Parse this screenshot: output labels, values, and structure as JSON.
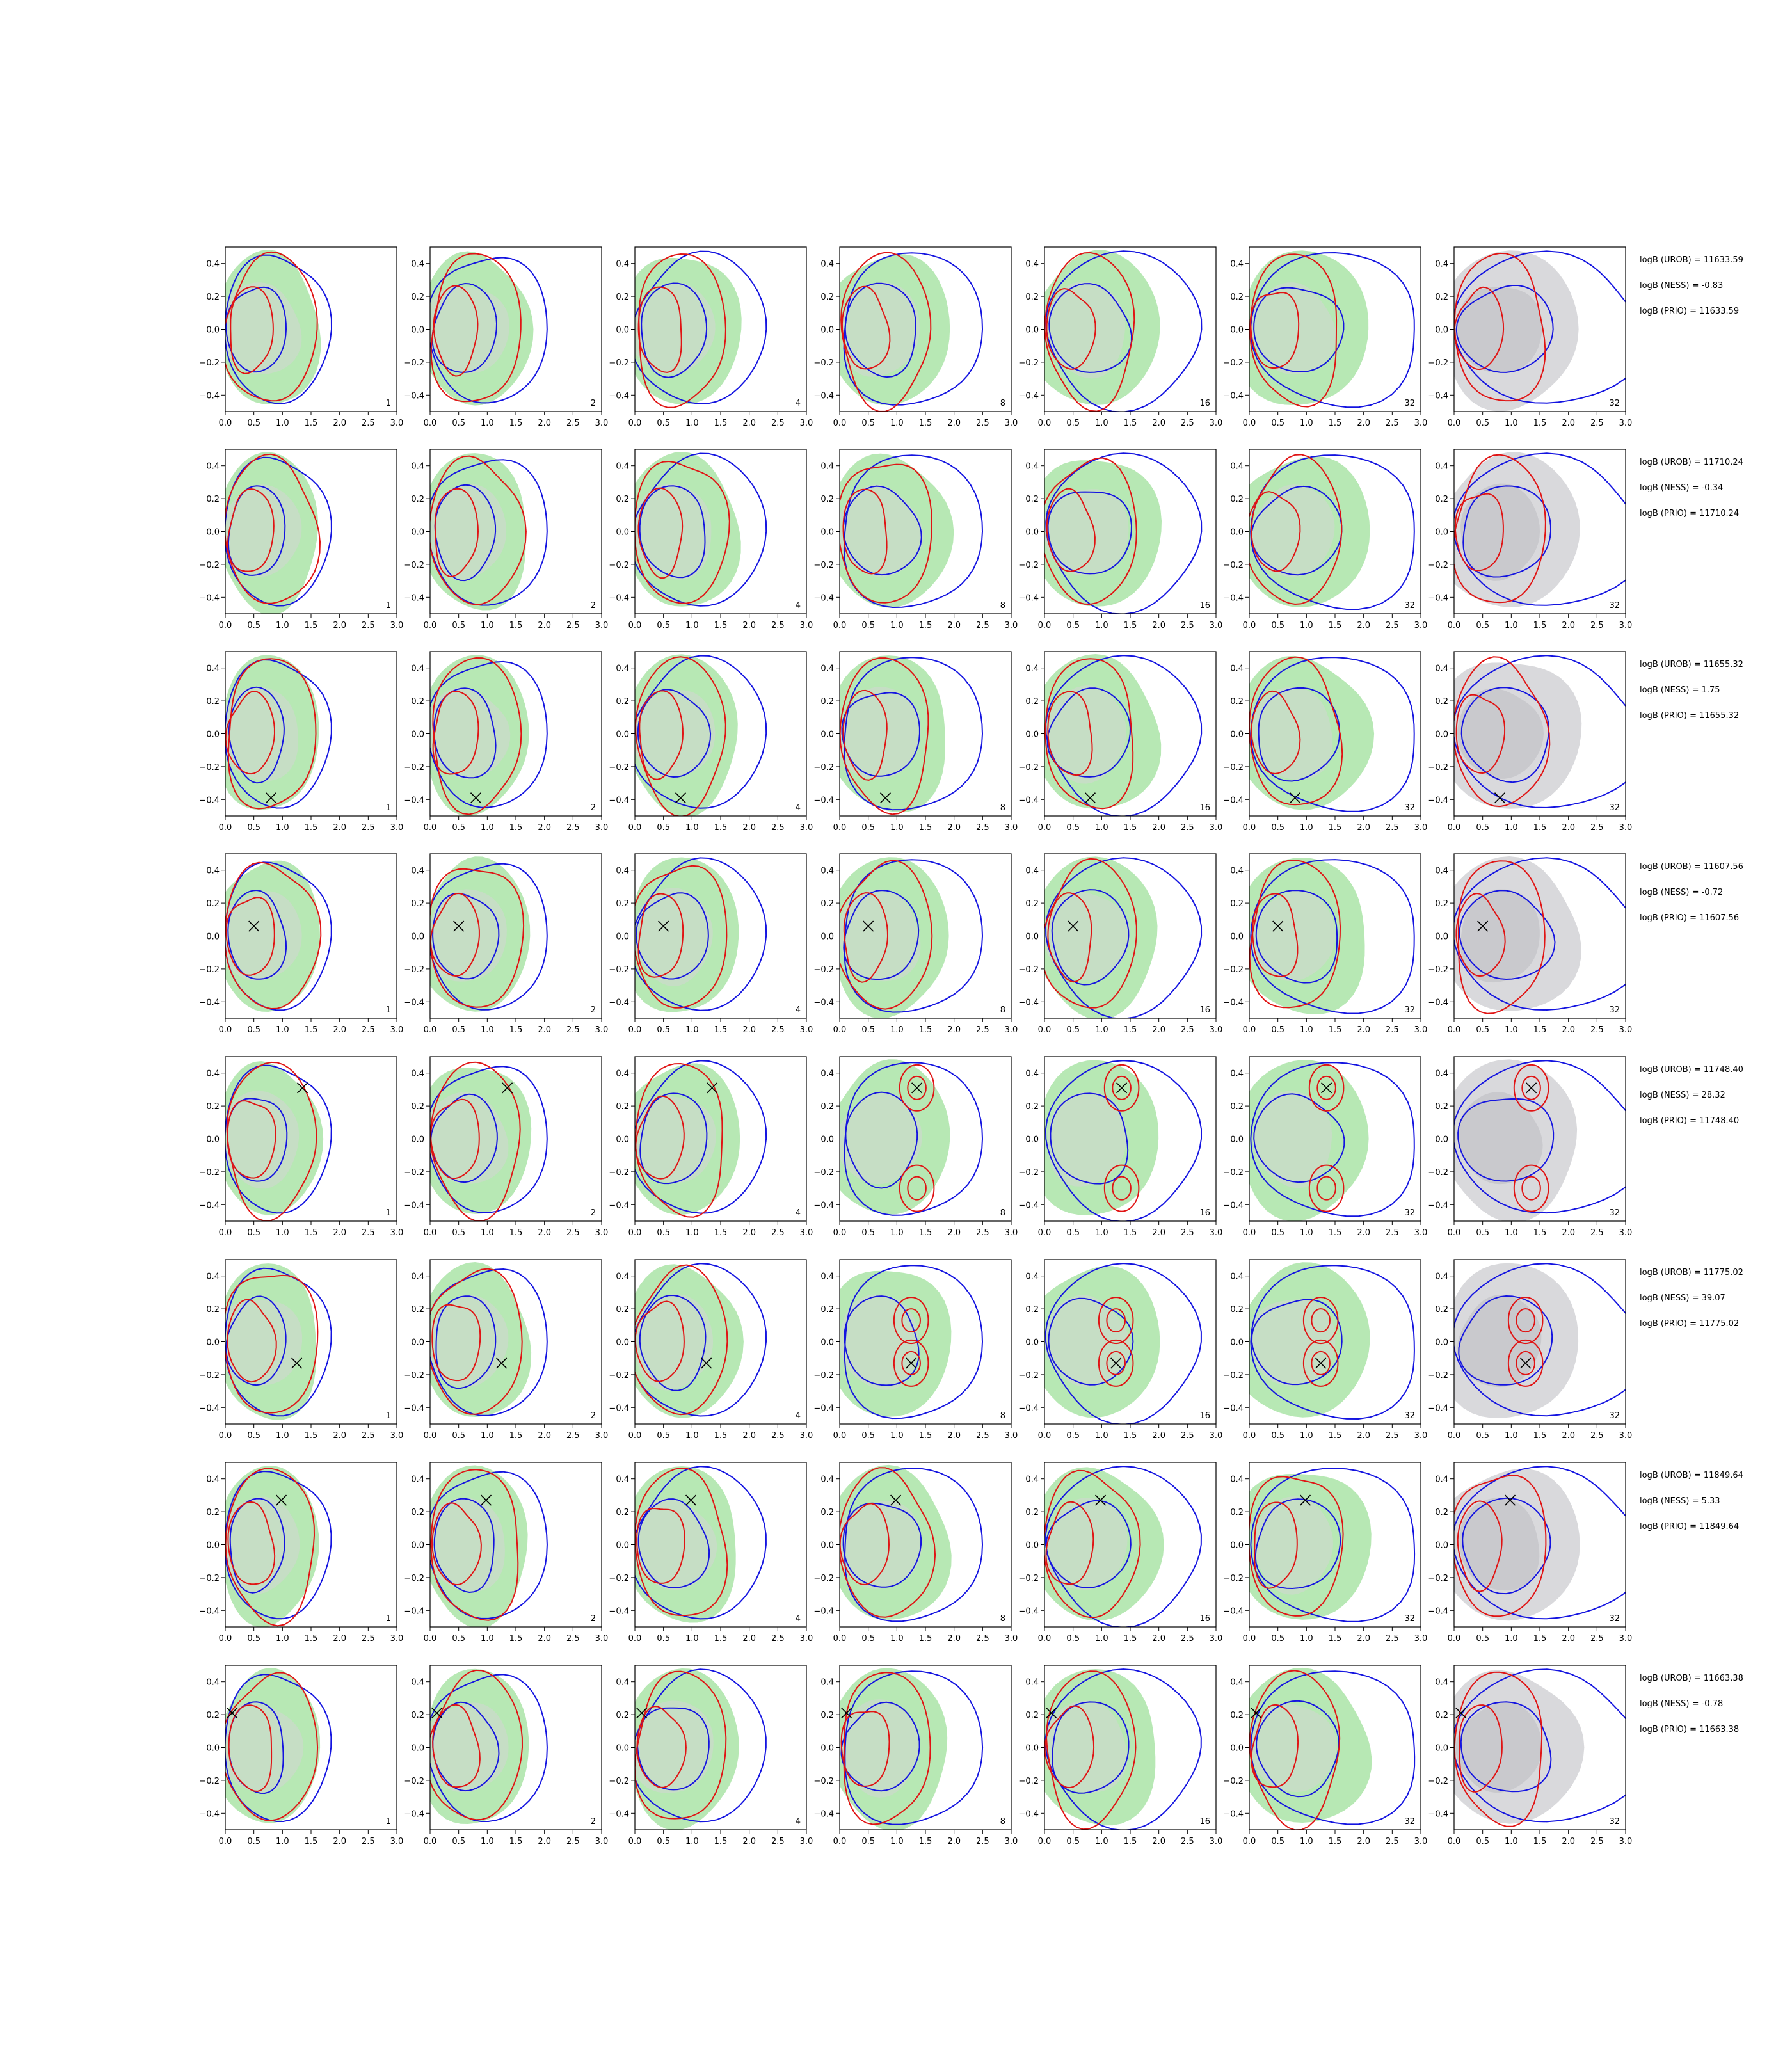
{
  "chart_data": {
    "type": "contour-grid",
    "xlim": [
      0.0,
      3.0
    ],
    "ylim": [
      -0.5,
      0.5
    ],
    "x_ticks": [
      "0.0",
      "0.5",
      "1.0",
      "1.5",
      "2.0",
      "2.5",
      "3.0"
    ],
    "y_ticks": [
      "0.4",
      "0.2",
      "0.0",
      "−0.2",
      "−0.4"
    ],
    "y_tick_values": [
      0.4,
      0.2,
      0.0,
      -0.2,
      -0.4
    ],
    "colors": {
      "green_fill": "#b7e8b4",
      "gray_fill": "#d9d9dc",
      "blue_line": "#1414e0",
      "red_line": "#e01414",
      "marker": "#000000"
    },
    "column_labels": [
      "1",
      "2",
      "4",
      "8",
      "16",
      "32",
      "32"
    ],
    "last_column_background": "gray",
    "rows": [
      {
        "marker": null,
        "logb": [
          "logB (UROB) = 11633.59",
          "logB (NESS) = -0.83",
          "logB (PRIO) = 11633.59"
        ]
      },
      {
        "marker": null,
        "logb": [
          "logB (UROB) = 11710.24",
          "logB (NESS) = -0.34",
          "logB (PRIO) = 11710.24"
        ]
      },
      {
        "marker": [
          0.8,
          -0.39
        ],
        "logb": [
          "logB (UROB) = 11655.32",
          "logB (NESS) = 1.75",
          "logB (PRIO) = 11655.32"
        ]
      },
      {
        "marker": [
          0.5,
          0.06
        ],
        "logb": [
          "logB (UROB) = 11607.56",
          "logB (NESS) = -0.72",
          "logB (PRIO) = 11607.56"
        ]
      },
      {
        "marker": [
          1.35,
          0.31
        ],
        "logb": [
          "logB (UROB) = 11748.40",
          "logB (NESS) = 28.32",
          "logB (PRIO) = 11748.40"
        ]
      },
      {
        "marker": [
          1.25,
          -0.13
        ],
        "logb": [
          "logB (UROB) = 11775.02",
          "logB (NESS) = 39.07",
          "logB (PRIO) = 11775.02"
        ]
      },
      {
        "marker": [
          0.98,
          0.27
        ],
        "logb": [
          "logB (UROB) = 11849.64",
          "logB (NESS) = 5.33",
          "logB (PRIO) = 11849.64"
        ]
      },
      {
        "marker": [
          0.12,
          0.21
        ],
        "logb": [
          "logB (UROB) = 11663.38",
          "logB (NESS) = -0.78",
          "logB (PRIO) = 11663.38"
        ]
      }
    ]
  }
}
